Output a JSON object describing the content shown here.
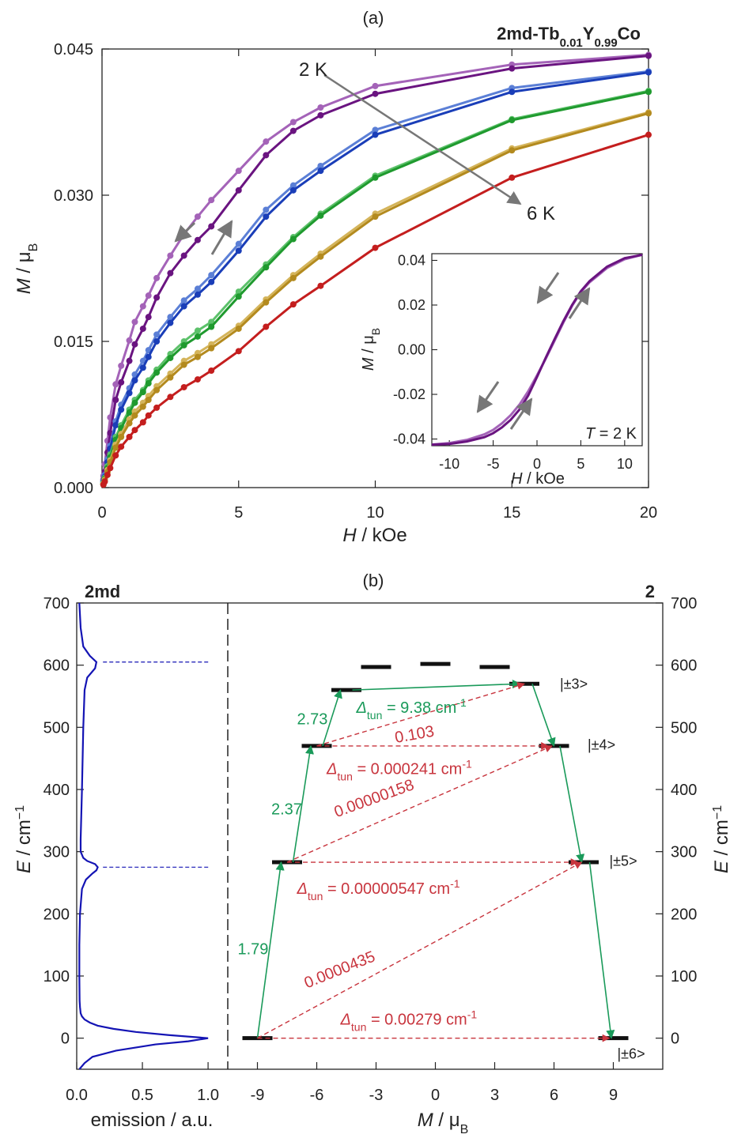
{
  "chart_data": [
    {
      "type": "line",
      "panel_label": "(a)",
      "title": "2md-Tb0.01Y0.99Co",
      "title_parts": {
        "base": "2md-Tb",
        "sub1": "0.01",
        "mid": "Y",
        "sub2": "0.99",
        "end": "Co"
      },
      "xlabel_italic": "H",
      "xlabel_rest": " / kOe",
      "ylabel_italic": "M",
      "ylabel_rest": " / μ",
      "ylabel_sub": "B",
      "xlim": [
        0,
        20
      ],
      "ylim": [
        0,
        0.045
      ],
      "xticks": [
        "0",
        "5",
        "10",
        "15",
        "20"
      ],
      "yticks": [
        "0.000",
        "0.015",
        "0.030",
        "0.045"
      ],
      "ytick_values": [
        0,
        0.015,
        0.03,
        0.045
      ],
      "xtick_values": [
        0,
        5,
        10,
        15,
        20
      ],
      "annotations": {
        "start": "2 K",
        "end": "6 K"
      },
      "x": [
        0.05,
        0.1,
        0.2,
        0.3,
        0.5,
        0.7,
        1.0,
        1.2,
        1.5,
        1.7,
        2.0,
        2.5,
        3.0,
        3.5,
        4.0,
        5.0,
        6.0,
        7.0,
        8.0,
        10.0,
        15.0,
        20.0
      ],
      "series": [
        {
          "color": "#a463b8",
          "values": [
            0.0012,
            0.0024,
            0.0048,
            0.0072,
            0.0106,
            0.0125,
            0.0151,
            0.017,
            0.0186,
            0.0197,
            0.0215,
            0.0238,
            0.026,
            0.0278,
            0.0295,
            0.0325,
            0.0355,
            0.0375,
            0.039,
            0.0412,
            0.0434,
            0.0444
          ]
        },
        {
          "color": "#6a1480",
          "values": [
            0.0008,
            0.0016,
            0.0036,
            0.0056,
            0.009,
            0.0108,
            0.013,
            0.0147,
            0.0163,
            0.0175,
            0.0195,
            0.022,
            0.0238,
            0.0254,
            0.0268,
            0.0305,
            0.0341,
            0.0366,
            0.0382,
            0.0404,
            0.043,
            0.0443
          ]
        },
        {
          "color": "#5b7fd6",
          "values": [
            0.0007,
            0.0013,
            0.0029,
            0.0043,
            0.0068,
            0.0085,
            0.0102,
            0.0116,
            0.013,
            0.0141,
            0.0157,
            0.0175,
            0.0192,
            0.0204,
            0.0218,
            0.025,
            0.0285,
            0.031,
            0.033,
            0.0367,
            0.041,
            0.0427
          ]
        },
        {
          "color": "#1a3eb8",
          "values": [
            0.0006,
            0.0011,
            0.0026,
            0.004,
            0.0064,
            0.008,
            0.0097,
            0.011,
            0.0123,
            0.0134,
            0.015,
            0.0169,
            0.0186,
            0.0198,
            0.0211,
            0.0243,
            0.0278,
            0.0305,
            0.0325,
            0.0362,
            0.0406,
            0.0426
          ]
        },
        {
          "color": "#5cc16a",
          "values": [
            0.0005,
            0.001,
            0.0022,
            0.0034,
            0.0052,
            0.0064,
            0.008,
            0.009,
            0.01,
            0.011,
            0.0121,
            0.0137,
            0.015,
            0.0161,
            0.017,
            0.0201,
            0.0229,
            0.0257,
            0.0281,
            0.032,
            0.0378,
            0.0407
          ]
        },
        {
          "color": "#1f9a2e",
          "values": [
            0.0004,
            0.0009,
            0.002,
            0.0031,
            0.0049,
            0.0061,
            0.0077,
            0.0087,
            0.0098,
            0.0107,
            0.0118,
            0.0133,
            0.0146,
            0.0155,
            0.0165,
            0.0196,
            0.0226,
            0.0255,
            0.0279,
            0.0318,
            0.0377,
            0.0406
          ]
        },
        {
          "color": "#d4b45a",
          "values": [
            0.0004,
            0.0008,
            0.0018,
            0.0028,
            0.0044,
            0.0055,
            0.007,
            0.0078,
            0.0087,
            0.0094,
            0.0104,
            0.0117,
            0.013,
            0.0138,
            0.0147,
            0.0166,
            0.0193,
            0.0218,
            0.024,
            0.0281,
            0.0348,
            0.0385
          ]
        },
        {
          "color": "#b38a1e",
          "values": [
            0.0003,
            0.0007,
            0.0016,
            0.0026,
            0.0041,
            0.0052,
            0.0066,
            0.0074,
            0.0083,
            0.009,
            0.01,
            0.0113,
            0.0126,
            0.0134,
            0.0143,
            0.0163,
            0.019,
            0.0215,
            0.0237,
            0.0278,
            0.0346,
            0.0384
          ]
        },
        {
          "color": "#c41e1e",
          "values": [
            0.0003,
            0.0006,
            0.0013,
            0.002,
            0.0033,
            0.0042,
            0.0052,
            0.0059,
            0.0067,
            0.0074,
            0.0082,
            0.0093,
            0.0103,
            0.0111,
            0.012,
            0.014,
            0.0165,
            0.0188,
            0.0207,
            0.0246,
            0.0318,
            0.0362
          ]
        }
      ],
      "arrow_color": "#777777",
      "inset": {
        "type": "line",
        "xlabel_italic": "H",
        "xlabel_rest": " / kOe",
        "ylabel_italic": "M",
        "ylabel_rest": " / μ",
        "ylabel_sub": "B",
        "xlim": [
          -12,
          12
        ],
        "ylim": [
          -0.043,
          0.043
        ],
        "xticks": [
          "-10",
          "-5",
          "0",
          "5",
          "10"
        ],
        "xtick_values": [
          -10,
          -5,
          0,
          5,
          10
        ],
        "yticks": [
          "0.04",
          "0.02",
          "0.00",
          "-0.02",
          "-0.04"
        ],
        "ytick_values": [
          0.04,
          0.02,
          0,
          -0.02,
          -0.04
        ],
        "label_italic": "T",
        "label_rest": " = 2 K",
        "x": [
          -12,
          -10,
          -8,
          -6,
          -5,
          -4,
          -3,
          -2,
          -1,
          0,
          1,
          2,
          3,
          4,
          5,
          6,
          8,
          10,
          12
        ],
        "series": [
          {
            "name": "descending",
            "color": "#a463b8",
            "values": [
              -0.0425,
              -0.0418,
              -0.0404,
              -0.0379,
              -0.0359,
              -0.033,
              -0.0293,
              -0.0246,
              -0.0186,
              -0.0115,
              -0.004,
              0.004,
              0.0121,
              0.0196,
              0.0258,
              0.0302,
              0.0366,
              0.0405,
              0.0425
            ]
          },
          {
            "name": "ascending",
            "color": "#6a1480",
            "values": [
              -0.0425,
              -0.0422,
              -0.0411,
              -0.0392,
              -0.0374,
              -0.0348,
              -0.0314,
              -0.0268,
              -0.0205,
              -0.0122,
              -0.0036,
              0.0047,
              0.0127,
              0.02,
              0.0262,
              0.0307,
              0.0372,
              0.041,
              0.0425
            ]
          }
        ]
      }
    },
    {
      "type": "line",
      "panel_label": "(b)",
      "left_title": "2md",
      "right_title": "2",
      "left": {
        "xlabel": "emission / a.u.",
        "xlim": [
          0,
          1.15
        ],
        "xticks": [
          "0.0",
          "0.5",
          "1.0"
        ],
        "xtick_values": [
          0,
          0.5,
          1.0
        ],
        "line_color": "#1414b4",
        "y": [
          -50,
          -40,
          -30,
          -20,
          -10,
          -5,
          0,
          5,
          10,
          15,
          20,
          25,
          30,
          35,
          40,
          50,
          60,
          100,
          150,
          200,
          240,
          255,
          265,
          270,
          275,
          280,
          285,
          290,
          300,
          320,
          400,
          500,
          560,
          580,
          595,
          605,
          615,
          630,
          660,
          700
        ],
        "emission": [
          0.02,
          0.06,
          0.12,
          0.3,
          0.6,
          0.85,
          1.0,
          0.7,
          0.45,
          0.28,
          0.16,
          0.1,
          0.06,
          0.04,
          0.03,
          0.025,
          0.022,
          0.02,
          0.02,
          0.025,
          0.04,
          0.07,
          0.12,
          0.15,
          0.16,
          0.14,
          0.08,
          0.05,
          0.03,
          0.03,
          0.04,
          0.05,
          0.06,
          0.08,
          0.14,
          0.15,
          0.1,
          0.05,
          0.03,
          0.02
        ],
        "guide_energies": [
          605,
          275
        ]
      },
      "right": {
        "xlabel_italic": "M",
        "xlabel_rest": " / μ",
        "xlabel_sub": "B",
        "xlim": [
          -10.5,
          11.5
        ],
        "xticks": [
          "-9",
          "-6",
          "-3",
          "0",
          "3",
          "6",
          "9"
        ],
        "xtick_values": [
          -9,
          -6,
          -3,
          0,
          3,
          6,
          9
        ]
      },
      "ylabel_italic": "E",
      "ylabel_rest": " / cm",
      "ylabel_sup": "−1",
      "ylim": [
        -50,
        700
      ],
      "yticks": [
        "0",
        "100",
        "200",
        "300",
        "400",
        "500",
        "600",
        "700"
      ],
      "ytick_values": [
        0,
        100,
        200,
        300,
        400,
        500,
        600,
        700
      ],
      "levels": [
        {
          "m": -9,
          "e": 0
        },
        {
          "m": 9,
          "e": 0
        },
        {
          "m": -7.5,
          "e": 283
        },
        {
          "m": 7.5,
          "e": 283
        },
        {
          "m": -6,
          "e": 470
        },
        {
          "m": 6,
          "e": 470
        },
        {
          "m": -4.5,
          "e": 560
        },
        {
          "m": 4.5,
          "e": 570
        },
        {
          "m": -3,
          "e": 597
        },
        {
          "m": 0,
          "e": 602
        },
        {
          "m": 3,
          "e": 597
        }
      ],
      "state_labels": [
        {
          "text": "|±6>",
          "m": 9.2,
          "e": -25
        },
        {
          "text": "|±5>",
          "m": 8.8,
          "e": 285
        },
        {
          "text": "|±4>",
          "m": 7.7,
          "e": 472
        },
        {
          "text": "|±3>",
          "m": 6.3,
          "e": 570
        }
      ],
      "green_color": "#1a9a5a",
      "red_color": "#c8353e",
      "green_arrows": [
        {
          "from": [
            -9,
            0
          ],
          "to": [
            -7.8,
            283
          ]
        },
        {
          "from": [
            -7.2,
            283
          ],
          "to": [
            -6.3,
            470
          ]
        },
        {
          "from": [
            -5.7,
            470
          ],
          "to": [
            -4.8,
            560
          ]
        },
        {
          "from": [
            -4.2,
            560
          ],
          "to": [
            4.3,
            570
          ]
        },
        {
          "from": [
            4.9,
            570
          ],
          "to": [
            6,
            470
          ]
        },
        {
          "from": [
            6.3,
            470
          ],
          "to": [
            7.4,
            283
          ]
        },
        {
          "from": [
            7.8,
            283
          ],
          "to": [
            8.9,
            0
          ]
        }
      ],
      "red_arrows": [
        {
          "from": [
            -9,
            0
          ],
          "to": [
            8.8,
            0
          ]
        },
        {
          "from": [
            -9,
            0
          ],
          "to": [
            7.4,
            283
          ]
        },
        {
          "from": [
            -7.5,
            283
          ],
          "to": [
            7.2,
            283
          ]
        },
        {
          "from": [
            -7.5,
            283
          ],
          "to": [
            5.9,
            470
          ]
        },
        {
          "from": [
            -6,
            470
          ],
          "to": [
            5.7,
            470
          ]
        },
        {
          "from": [
            -6,
            470
          ],
          "to": [
            4.5,
            570
          ]
        }
      ],
      "green_labels": [
        {
          "text": "1.79",
          "m": -10.0,
          "e": 135
        },
        {
          "text": "2.37",
          "m": -8.3,
          "e": 360
        },
        {
          "text": "2.73",
          "m": -7.0,
          "e": 505
        }
      ],
      "tun_labels": [
        {
          "color": "green",
          "m": -4.0,
          "e": 523,
          "value": " = 9.38 cm"
        },
        {
          "color": "red",
          "m": -5.5,
          "e": 425,
          "value": " = 0.000241 cm"
        },
        {
          "color": "red",
          "m": -7.0,
          "e": 232,
          "value": " = 0.00000547 cm"
        },
        {
          "color": "red",
          "m": -4.8,
          "e": 22,
          "value": " = 0.00279 cm"
        }
      ],
      "tun_symbol": "Δ",
      "tun_sub": "tun",
      "tun_sup": "-1",
      "rotated_labels": [
        {
          "text": "0.103",
          "m": -2.0,
          "e": 475,
          "angle": -10
        },
        {
          "text": "0.00000158",
          "m": -5.0,
          "e": 355,
          "angle": -20
        },
        {
          "text": "0.0000435",
          "m": -6.5,
          "e": 80,
          "angle": -22
        }
      ]
    }
  ]
}
